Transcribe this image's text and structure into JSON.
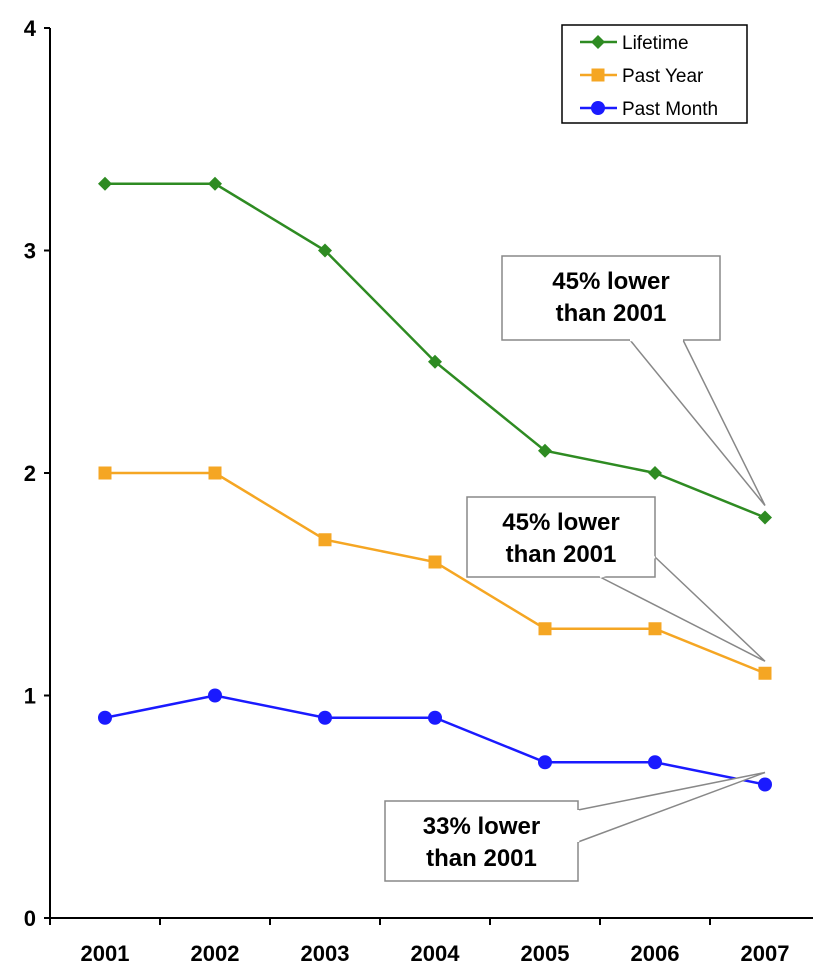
{
  "chart_data": {
    "type": "line",
    "title": "",
    "xlabel": "",
    "ylabel": "",
    "categories": [
      "2001",
      "2002",
      "2003",
      "2004",
      "2005",
      "2006",
      "2007"
    ],
    "ylim": [
      0,
      4
    ],
    "yticks": [
      "0",
      "1",
      "2",
      "3",
      "4"
    ],
    "grid": false,
    "legend_position": "top-right",
    "series": [
      {
        "name": "Lifetime",
        "color": "#2e8b22",
        "marker": "diamond",
        "values": [
          3.3,
          3.3,
          3.0,
          2.5,
          2.1,
          2.0,
          1.8
        ]
      },
      {
        "name": "Past Year",
        "color": "#f5a623",
        "marker": "square",
        "values": [
          2.0,
          2.0,
          1.7,
          1.6,
          1.3,
          1.3,
          1.1
        ]
      },
      {
        "name": "Past Month",
        "color": "#1a1aff",
        "marker": "circle",
        "values": [
          0.9,
          1.0,
          0.9,
          0.9,
          0.7,
          0.7,
          0.6
        ]
      }
    ],
    "annotations": [
      {
        "series": "Lifetime",
        "target_category": "2007",
        "lines": [
          "45% lower",
          "than 2001"
        ]
      },
      {
        "series": "Past Year",
        "target_category": "2007",
        "lines": [
          "45% lower",
          "than 2001"
        ]
      },
      {
        "series": "Past Month",
        "target_category": "2007",
        "lines": [
          "33% lower",
          "than 2001"
        ]
      }
    ]
  }
}
